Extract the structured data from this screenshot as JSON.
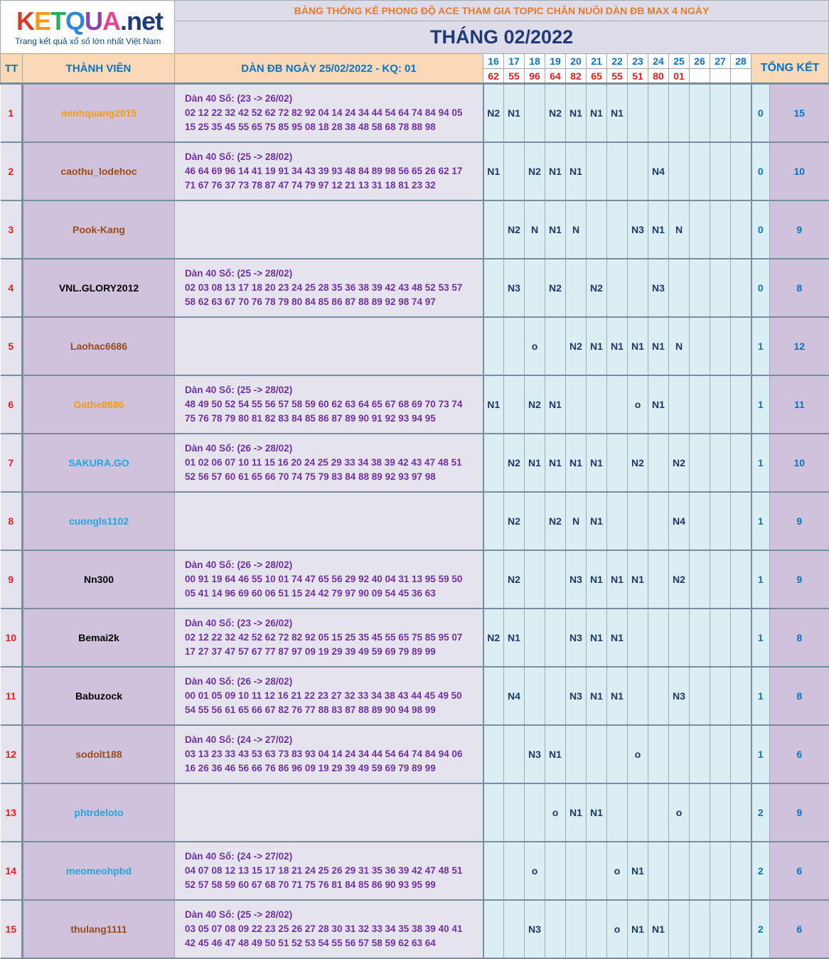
{
  "logo": {
    "title_parts": [
      {
        "text": "K",
        "color": "#e0392b"
      },
      {
        "text": "E",
        "color": "#f39c12"
      },
      {
        "text": "T",
        "color": "#27ae60"
      },
      {
        "text": "Q",
        "color": "#2e86de"
      },
      {
        "text": "U",
        "color": "#8e44ad"
      },
      {
        "text": "A",
        "color": "#e84393"
      },
      {
        "text": ".net",
        "color": "#1f3a78"
      }
    ],
    "subtitle": "Trang kết quả xổ số lớn nhất Việt Nam"
  },
  "header": {
    "title": "BẢNG THỐNG KÊ PHONG ĐỘ ACE THAM GIA TOPIC CHĂN NUÔI DÀN ĐB MAX 4 NGÀY",
    "month": "THÁNG 02/2022",
    "col_tt": "TT",
    "col_member": "THÀNH VIÊN",
    "col_dan": "DÀN ĐB NGÀY 25/02/2022 - KQ: 01",
    "col_total": "TỔNG KẾT",
    "days": [
      "16",
      "17",
      "18",
      "19",
      "20",
      "21",
      "22",
      "23",
      "24",
      "25",
      "26",
      "27",
      "28"
    ],
    "results": [
      "62",
      "55",
      "96",
      "64",
      "82",
      "65",
      "55",
      "51",
      "80",
      "01",
      "",
      "",
      ""
    ]
  },
  "rows": [
    {
      "tt": "1",
      "name": "minhquang2015",
      "name_color": "#f39c12",
      "dan": [
        "Dàn 40 Số: (23 -> 26/02)",
        "02 12 22 32 42 52 62 72 82 92 04 14 24 34 44 54 64 74 84 94 05",
        "15 25 35 45 55 65 75 85 95 08 18 28 38 48 58 68 78 88 98"
      ],
      "days": [
        "N2",
        "N1",
        "",
        "N2",
        "N1",
        "N1",
        "N1",
        "",
        "",
        "",
        "",
        "",
        ""
      ],
      "miss": "0",
      "total": "15"
    },
    {
      "tt": "2",
      "name": "caothu_lodehoc",
      "name_color": "#9c4a1a",
      "dan": [
        "Dàn 40 Số: (25 -> 28/02)",
        "46 64 69 96 14 41 19 91 34 43 39 93 48 84 89 98 56 65 26 62 17",
        "71 67 76 37 73 78 87 47 74 79 97 12 21 13 31 18 81 23 32"
      ],
      "days": [
        "N1",
        "",
        "N2",
        "N1",
        "N1",
        "",
        "",
        "",
        "N4",
        "",
        "",
        "",
        ""
      ],
      "miss": "0",
      "total": "10"
    },
    {
      "tt": "3",
      "name": "Pook-Kang",
      "name_color": "#9c4a1a",
      "dan": [],
      "days": [
        "",
        "N2",
        "N",
        "N1",
        "N",
        "",
        "",
        "N3",
        "N1",
        "N",
        "",
        "",
        ""
      ],
      "miss": "0",
      "total": "9"
    },
    {
      "tt": "4",
      "name": "VNL.GLORY2012",
      "name_color": "#000000",
      "dan": [
        "Dàn 40 Số: (25 -> 28/02)",
        "02 03 08 13 17 18 20 23 24 25 28 35 36 38 39 42 43 48 52 53 57",
        "58 62 63 67 70 76 78 79 80 84 85 86 87 88 89 92 98 74 97"
      ],
      "days": [
        "",
        "N3",
        "",
        "N2",
        "",
        "N2",
        "",
        "",
        "N3",
        "",
        "",
        "",
        ""
      ],
      "miss": "0",
      "total": "8"
    },
    {
      "tt": "5",
      "name": "Laohac6686",
      "name_color": "#9c4a1a",
      "dan": [],
      "days": [
        "",
        "",
        "o",
        "",
        "N2",
        "N1",
        "N1",
        "N1",
        "N1",
        "N",
        "",
        "",
        ""
      ],
      "miss": "1",
      "total": "12"
    },
    {
      "tt": "6",
      "name": "Gathe8686",
      "name_color": "#f39c12",
      "dan": [
        "Dàn 40 Số: (25 -> 28/02)",
        "48 49 50 52 54 55 56 57 58 59 60 62 63 64 65 67 68 69 70 73 74",
        "75 76 78 79 80 81 82 83 84 85 86 87 89 90 91 92 93 94 95"
      ],
      "days": [
        "N1",
        "",
        "N2",
        "N1",
        "",
        "",
        "",
        "o",
        "N1",
        "",
        "",
        "",
        ""
      ],
      "miss": "1",
      "total": "11"
    },
    {
      "tt": "7",
      "name": "SAKURA.GO",
      "name_color": "#1ea7e1",
      "dan": [
        "Dàn 40 Số: (26 -> 28/02)",
        "01 02 06 07 10 11 15 16 20 24 25 29 33 34 38 39 42 43 47 48 51",
        "52 56 57 60 61 65 66 70 74 75 79 83 84 88 89 92 93 97 98"
      ],
      "days": [
        "",
        "N2",
        "N1",
        "N1",
        "N1",
        "N1",
        "",
        "N2",
        "",
        "N2",
        "",
        "",
        ""
      ],
      "miss": "1",
      "total": "10"
    },
    {
      "tt": "8",
      "name": "cuongls1102",
      "name_color": "#1ea7e1",
      "dan": [],
      "days": [
        "",
        "N2",
        "",
        "N2",
        "N",
        "N1",
        "",
        "",
        "",
        "N4",
        "",
        "",
        ""
      ],
      "miss": "1",
      "total": "9"
    },
    {
      "tt": "9",
      "name": "Nn300",
      "name_color": "#000000",
      "dan": [
        "Dàn 40 Số: (26 -> 28/02)",
        "00 91 19 64 46 55 10 01 74 47 65 56 29 92 40 04 31 13 95 59 50",
        "05 41 14 96 69 60 06 51 15 24 42 79 97 90 09 54 45 36 63"
      ],
      "days": [
        "",
        "N2",
        "",
        "",
        "N3",
        "N1",
        "N1",
        "N1",
        "",
        "N2",
        "",
        "",
        ""
      ],
      "miss": "1",
      "total": "9"
    },
    {
      "tt": "10",
      "name": "Bemai2k",
      "name_color": "#000000",
      "dan": [
        "Dàn 40 Số: (23 -> 26/02)",
        "02 12 22 32 42 52 62 72 82 92 05 15 25 35 45 55 65 75 85 95 07",
        "17 27 37 47 57 67 77 87 97 09 19 29 39 49 59 69 79 89 99"
      ],
      "days": [
        "N2",
        "N1",
        "",
        "",
        "N3",
        "N1",
        "N1",
        "",
        "",
        "",
        "",
        "",
        ""
      ],
      "miss": "1",
      "total": "8"
    },
    {
      "tt": "11",
      "name": "Babuzock",
      "name_color": "#000000",
      "dan": [
        "Dàn 40 Số: (26 -> 28/02)",
        "00 01 05 09 10 11 12 16 21 22 23 27 32 33 34 38 43 44 45 49 50",
        "54 55 56 61 65 66 67 82 76 77 88 83 87 88 89 90 94 98 99"
      ],
      "days": [
        "",
        "N4",
        "",
        "",
        "N3",
        "N1",
        "N1",
        "",
        "",
        "N3",
        "",
        "",
        ""
      ],
      "miss": "1",
      "total": "8"
    },
    {
      "tt": "12",
      "name": "sodolt188",
      "name_color": "#9c4a1a",
      "dan": [
        "Dàn 40 Số: (24 -> 27/02)",
        "03 13 23 33 43 53 63 73 83 93 04 14 24 34 44 54 64 74 84 94 06",
        "16 26 36 46 56 66 76 86 96 09 19 29 39 49 59 69 79 89 99"
      ],
      "days": [
        "",
        "",
        "N3",
        "N1",
        "",
        "",
        "",
        "o",
        "",
        "",
        "",
        "",
        ""
      ],
      "miss": "1",
      "total": "6"
    },
    {
      "tt": "13",
      "name": "phtrdeloto",
      "name_color": "#1ea7e1",
      "dan": [],
      "days": [
        "",
        "",
        "",
        "o",
        "N1",
        "N1",
        "",
        "",
        "",
        "o",
        "",
        "",
        ""
      ],
      "miss": "2",
      "total": "9"
    },
    {
      "tt": "14",
      "name": "meomeohpbd",
      "name_color": "#1ea7e1",
      "dan": [
        "Dàn 40 Số: (24 -> 27/02)",
        "04 07 08 12 13 15 17 18 21 24 25 26 29 31 35 36 39 42 47 48 51",
        "52 57 58 59 60 67 68 70 71 75 76 81 84 85 86 90 93 95 99"
      ],
      "days": [
        "",
        "",
        "o",
        "",
        "",
        "",
        "o",
        "N1",
        "",
        "",
        "",
        "",
        ""
      ],
      "miss": "2",
      "total": "6"
    },
    {
      "tt": "15",
      "name": "thulang1111",
      "name_color": "#9c4a1a",
      "dan": [
        "Dàn 40 Số: (25 -> 28/02)",
        "03 05 07 08 09 22 23 25 26 27 28 30 31 32 33 34 35 38 39 40 41",
        "42 45 46 47 48 49 50 51 52 53 54 55 56 57 58 59 62 63 64"
      ],
      "days": [
        "",
        "",
        "N3",
        "",
        "",
        "",
        "o",
        "N1",
        "N1",
        "",
        "",
        "",
        ""
      ],
      "miss": "2",
      "total": "6"
    }
  ]
}
